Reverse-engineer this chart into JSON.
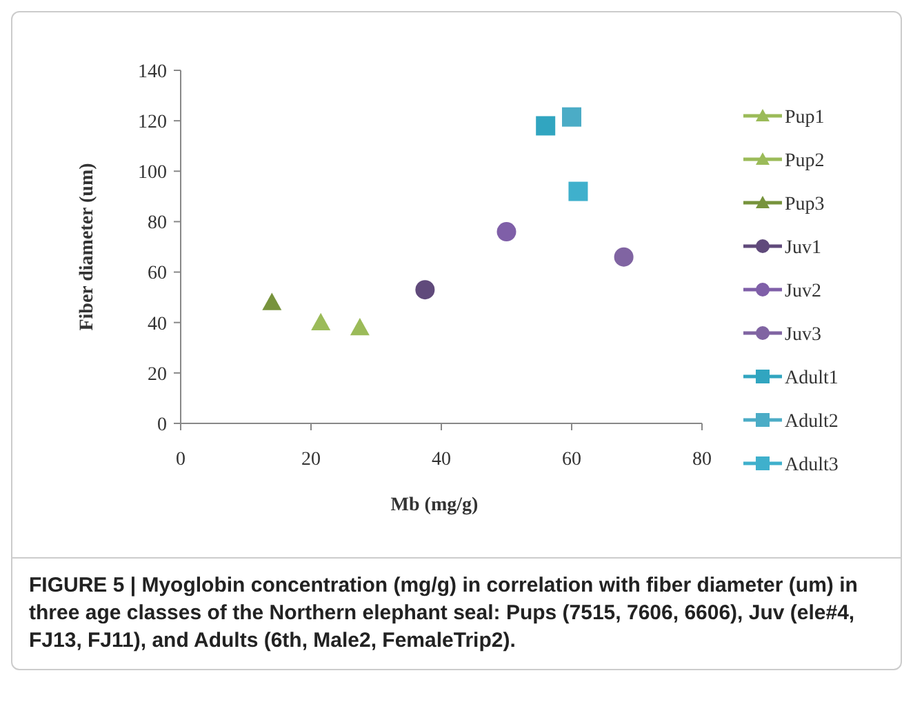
{
  "chart_data": {
    "type": "scatter",
    "xlabel": "Mb (mg/g)",
    "ylabel": "Fiber diameter (um)",
    "xlim": [
      0,
      80
    ],
    "xticks": [
      0,
      20,
      40,
      60,
      80
    ],
    "ylim": [
      0,
      140
    ],
    "yticks": [
      0,
      20,
      40,
      60,
      80,
      100,
      120,
      140
    ],
    "legend": "right",
    "grid": false,
    "series": [
      {
        "name": "Pup1",
        "color": "#9bbb59",
        "marker": "triangle",
        "x": [
          21.5
        ],
        "values": [
          40
        ]
      },
      {
        "name": "Pup2",
        "color": "#9bbb59",
        "marker": "triangle",
        "x": [
          27.5
        ],
        "values": [
          38
        ]
      },
      {
        "name": "Pup3",
        "color": "#77933c",
        "marker": "triangle",
        "x": [
          14
        ],
        "values": [
          48
        ]
      },
      {
        "name": "Juv1",
        "color": "#604a7b",
        "marker": "circle",
        "x": [
          37.5
        ],
        "values": [
          53
        ]
      },
      {
        "name": "Juv2",
        "color": "#7f5fa8",
        "marker": "circle",
        "x": [
          50
        ],
        "values": [
          76
        ]
      },
      {
        "name": "Juv3",
        "color": "#8064a2",
        "marker": "circle",
        "x": [
          68
        ],
        "values": [
          66
        ]
      },
      {
        "name": "Adult1",
        "color": "#31a5c0",
        "marker": "square",
        "x": [
          56
        ],
        "values": [
          118
        ]
      },
      {
        "name": "Adult2",
        "color": "#4bacc6",
        "marker": "square",
        "x": [
          60
        ],
        "values": [
          121.5
        ]
      },
      {
        "name": "Adult3",
        "color": "#3fb0cc",
        "marker": "square",
        "x": [
          61
        ],
        "values": [
          92
        ]
      }
    ],
    "annotations": [
      "FIGURE 5 | Myoglobin concentration (mg/g) in correlation with fiber diameter (um) in three age classes of the Northern elephant seal: Pups (7515, 7606, 6606), Juv (ele#4, FJ13, FJ11), and Adults (6th, Male2, FemaleTrip2)."
    ]
  }
}
